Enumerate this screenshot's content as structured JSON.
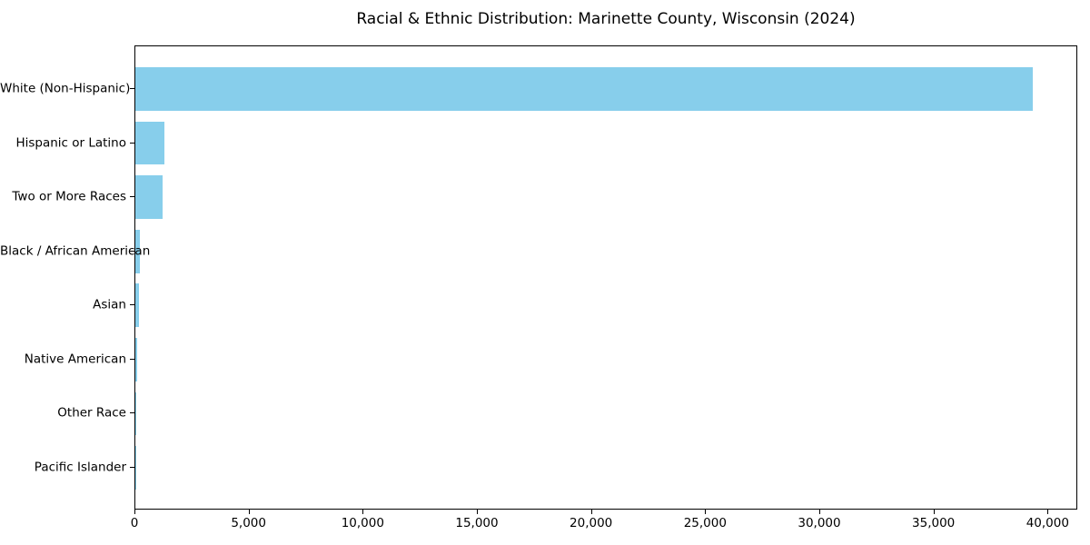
{
  "chart_data": {
    "type": "bar",
    "orientation": "horizontal",
    "title": "Racial & Ethnic Distribution: Marinette County, Wisconsin (2024)",
    "xlabel": "",
    "ylabel": "",
    "categories": [
      "White (Non-Hispanic)",
      "Hispanic or Latino",
      "Two or More Races",
      "Black / African American",
      "Asian",
      "Native American",
      "Other Race",
      "Pacific Islander"
    ],
    "values": [
      39300,
      1260,
      1190,
      200,
      160,
      80,
      30,
      10
    ],
    "bar_color": "#87CEEB",
    "axis_color": "#000000",
    "background_color": "#ffffff",
    "xlim": [
      0,
      41300
    ],
    "xticks": [
      0,
      5000,
      10000,
      15000,
      20000,
      25000,
      30000,
      35000,
      40000
    ],
    "xtick_labels": [
      "0",
      "5,000",
      "10,000",
      "15,000",
      "20,000",
      "25,000",
      "30,000",
      "35,000",
      "40,000"
    ],
    "grid": false,
    "legend": "none",
    "frame": "full-box"
  }
}
